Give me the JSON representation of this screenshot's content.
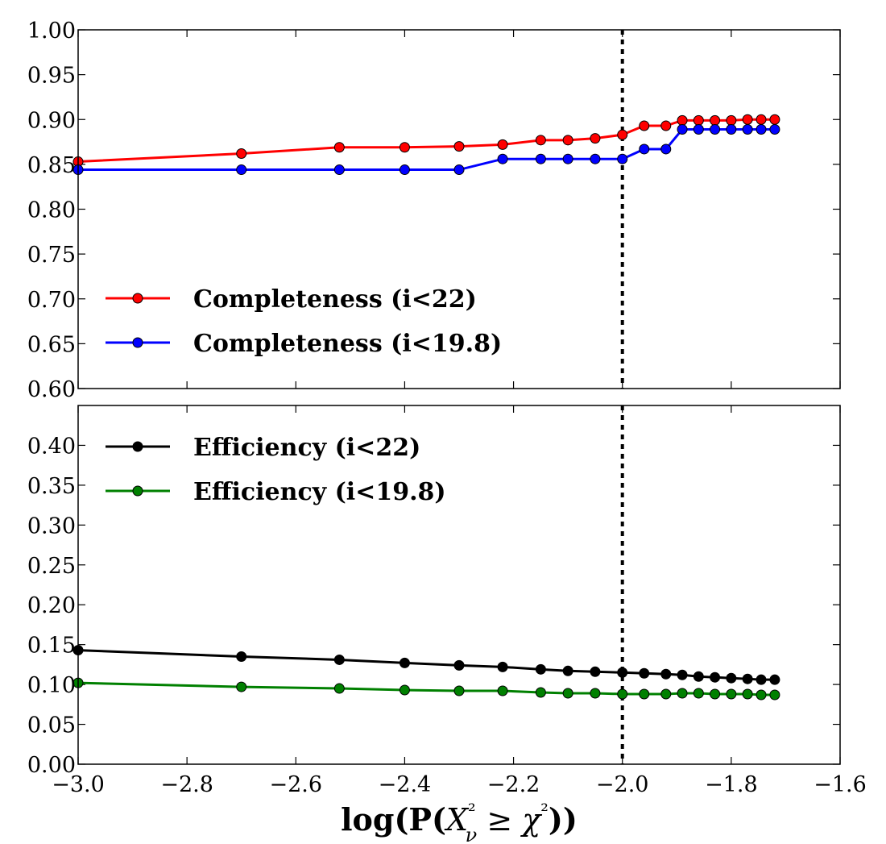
{
  "chart_data": [
    {
      "type": "line",
      "panel": "top",
      "ylim": [
        0.6,
        1.0
      ],
      "xlim": [
        -3.0,
        -1.6
      ],
      "yticks": [
        "0.60",
        "0.65",
        "0.70",
        "0.75",
        "0.80",
        "0.85",
        "0.90",
        "0.95",
        "1.00"
      ],
      "reference_line_x": -2.0,
      "legend_position": "lower-left",
      "series": [
        {
          "name": "Completeness (i<22)",
          "color": "#ff0000",
          "x": [
            -3.0,
            -2.7,
            -2.52,
            -2.4,
            -2.3,
            -2.22,
            -2.15,
            -2.1,
            -2.05,
            -2.0,
            -1.96,
            -1.92,
            -1.89,
            -1.86,
            -1.83,
            -1.8,
            -1.77,
            -1.745,
            -1.72
          ],
          "y": [
            0.853,
            0.862,
            0.869,
            0.869,
            0.87,
            0.872,
            0.877,
            0.877,
            0.879,
            0.883,
            0.893,
            0.893,
            0.899,
            0.899,
            0.899,
            0.899,
            0.9,
            0.9,
            0.9
          ]
        },
        {
          "name": "Completeness (i<19.8)",
          "color": "#0000ff",
          "x": [
            -3.0,
            -2.7,
            -2.52,
            -2.4,
            -2.3,
            -2.22,
            -2.15,
            -2.1,
            -2.05,
            -2.0,
            -1.96,
            -1.92,
            -1.89,
            -1.86,
            -1.83,
            -1.8,
            -1.77,
            -1.745,
            -1.72
          ],
          "y": [
            0.844,
            0.844,
            0.844,
            0.844,
            0.844,
            0.856,
            0.856,
            0.856,
            0.856,
            0.856,
            0.867,
            0.867,
            0.889,
            0.889,
            0.889,
            0.889,
            0.889,
            0.889,
            0.889
          ]
        }
      ]
    },
    {
      "type": "line",
      "panel": "bottom",
      "ylim": [
        0.0,
        0.45
      ],
      "xlim": [
        -3.0,
        -1.6
      ],
      "yticks": [
        "0.00",
        "0.05",
        "0.10",
        "0.15",
        "0.20",
        "0.25",
        "0.30",
        "0.35",
        "0.40"
      ],
      "xticks": [
        "−3.0",
        "−2.8",
        "−2.6",
        "−2.4",
        "−2.2",
        "−2.0",
        "−1.8",
        "−1.6"
      ],
      "xlabel": "log(P(Xν² ≥ χ²))",
      "reference_line_x": -2.0,
      "legend_position": "upper-left",
      "series": [
        {
          "name": "Efficiency (i<22)",
          "color": "#000000",
          "x": [
            -3.0,
            -2.7,
            -2.52,
            -2.4,
            -2.3,
            -2.22,
            -2.15,
            -2.1,
            -2.05,
            -2.0,
            -1.96,
            -1.92,
            -1.89,
            -1.86,
            -1.83,
            -1.8,
            -1.77,
            -1.745,
            -1.72
          ],
          "y": [
            0.143,
            0.135,
            0.131,
            0.127,
            0.124,
            0.122,
            0.119,
            0.117,
            0.116,
            0.115,
            0.114,
            0.113,
            0.112,
            0.11,
            0.109,
            0.108,
            0.107,
            0.106,
            0.106
          ]
        },
        {
          "name": "Efficiency (i<19.8)",
          "color": "#008000",
          "x": [
            -3.0,
            -2.7,
            -2.52,
            -2.4,
            -2.3,
            -2.22,
            -2.15,
            -2.1,
            -2.05,
            -2.0,
            -1.96,
            -1.92,
            -1.89,
            -1.86,
            -1.83,
            -1.8,
            -1.77,
            -1.745,
            -1.72
          ],
          "y": [
            0.102,
            0.097,
            0.095,
            0.093,
            0.092,
            0.092,
            0.09,
            0.089,
            0.089,
            0.088,
            0.088,
            0.088,
            0.089,
            0.089,
            0.088,
            0.088,
            0.088,
            0.087,
            0.087
          ]
        }
      ]
    }
  ]
}
